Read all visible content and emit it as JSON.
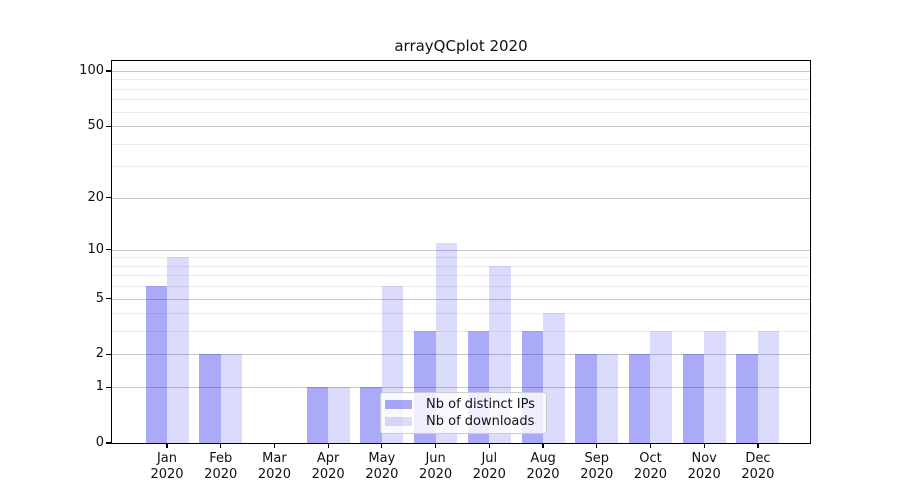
{
  "title": "arrayQCplot 2020",
  "chart_data": {
    "type": "bar",
    "title": "arrayQCplot 2020",
    "categories": [
      "Jan 2020",
      "Feb 2020",
      "Mar 2020",
      "Apr 2020",
      "May 2020",
      "Jun 2020",
      "Jul 2020",
      "Aug 2020",
      "Sep 2020",
      "Oct 2020",
      "Nov 2020",
      "Dec 2020"
    ],
    "series": [
      {
        "name": "Nb of distinct IPs",
        "color": "rgba(10,10,235,0.345)",
        "values": [
          6,
          2,
          0,
          1,
          1,
          3,
          3,
          3,
          2,
          2,
          2,
          2
        ]
      },
      {
        "name": "Nb of downloads",
        "color": "rgba(10,10,235,0.145)",
        "values": [
          9,
          2,
          0,
          1,
          6,
          11,
          8,
          4,
          2,
          3,
          3,
          3
        ]
      }
    ],
    "xlabel": "",
    "ylabel": "",
    "grid": true,
    "legend_position": "lower center",
    "y_axis": {
      "scale": "log1p",
      "major_ticks": [
        0,
        1,
        2,
        5,
        10,
        20,
        50,
        100
      ],
      "minor_ticks": [
        3,
        4,
        6,
        7,
        8,
        9,
        30,
        40,
        60,
        70,
        80,
        90
      ],
      "top_value": 113.4
    }
  },
  "colors": {
    "bar_distinct_ips_on_white": "#aaaaf8",
    "bar_downloads_on_white": "#dcdcfb",
    "grid_major": "#c8c8c8",
    "grid_minor": "#ececec",
    "axis": "#000000",
    "legend_border": "#cccccc",
    "legend_background": "rgba(255,255,255,0.8)"
  }
}
